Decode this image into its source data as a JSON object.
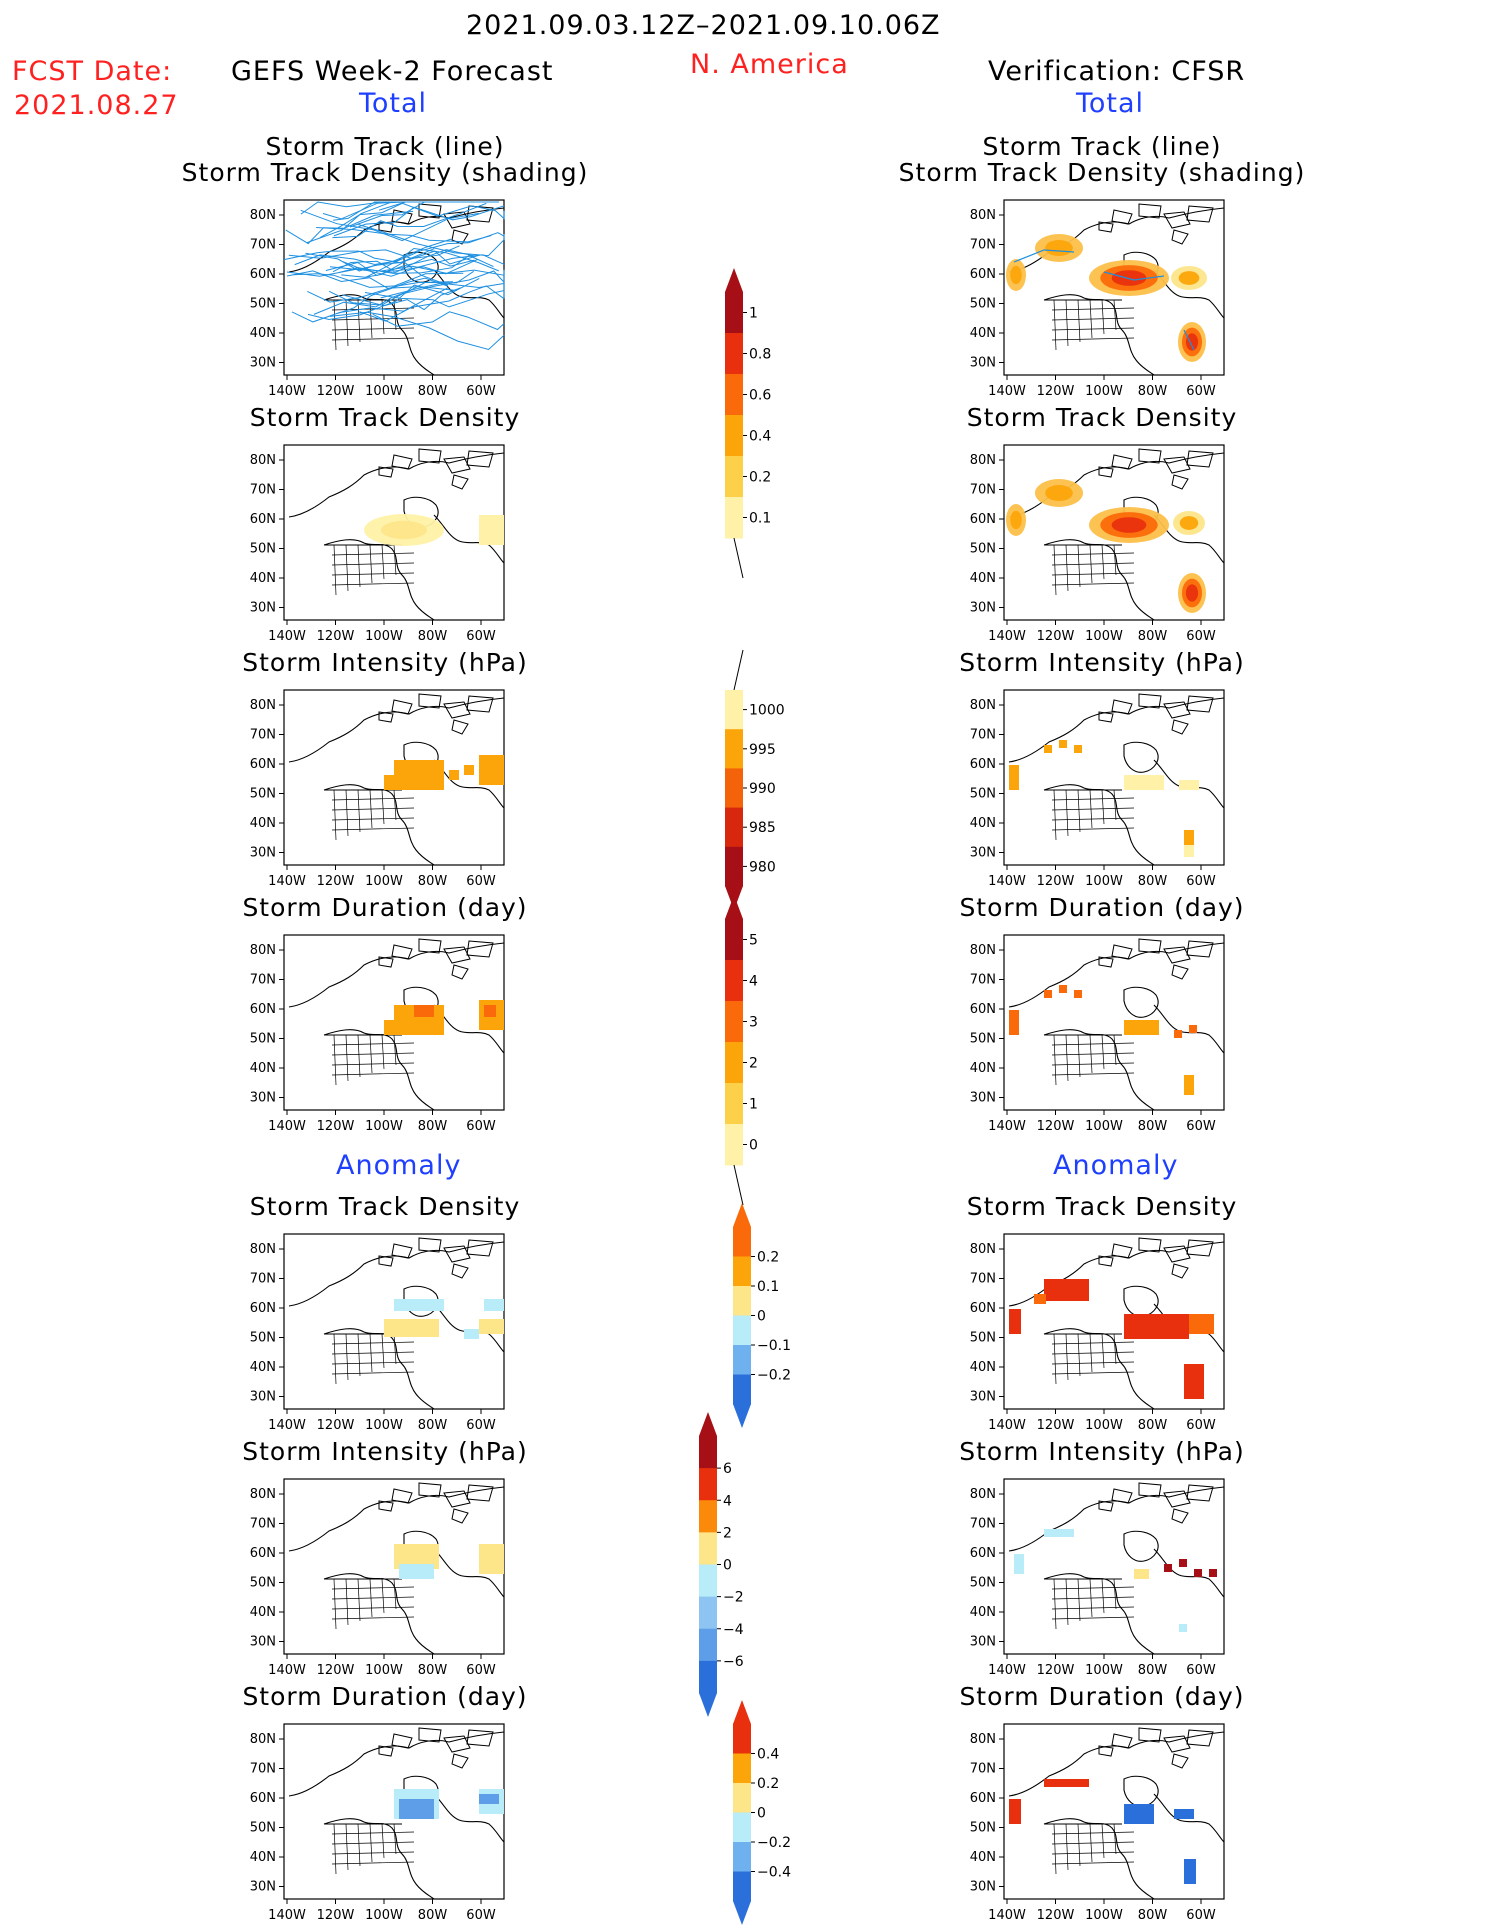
{
  "header": {
    "period": "2021.09.03.12Z–2021.09.10.06Z",
    "fcst_label": "FCST Date:",
    "fcst_date": "2021.08.27",
    "region": "N. America",
    "left_title": "GEFS Week-2 Forecast",
    "right_title": "Verification: CFSR",
    "total_label": "Total",
    "anomaly_label": "Anomaly"
  },
  "map_axes": {
    "lat_ticks": [
      "80N",
      "70N",
      "60N",
      "50N",
      "40N",
      "30N"
    ],
    "lon_ticks": [
      "140W",
      "120W",
      "100W",
      "80W",
      "60W"
    ]
  },
  "panel_titles": {
    "track": [
      "Storm Track (line)",
      "Storm Track Density (shading)"
    ],
    "density": "Storm Track Density",
    "intensity": "Storm Intensity (hPa)",
    "duration": "Storm Duration (day)"
  },
  "colorbars": [
    {
      "id": "track-density",
      "arrows": "top",
      "labels": [
        "1",
        "0.8",
        "0.6",
        "0.4",
        "0.2",
        "0.1"
      ],
      "colors": [
        "#a50f15",
        "#e8300e",
        "#fb6a0a",
        "#fca50a",
        "#fdd04a",
        "#fff2a8"
      ]
    },
    {
      "id": "intensity",
      "arrows": "bottom",
      "labels": [
        "1000",
        "995",
        "990",
        "985",
        "980"
      ],
      "colors": [
        "#fff2a8",
        "#fca50a",
        "#f4620a",
        "#d7280e",
        "#a50f15"
      ]
    },
    {
      "id": "duration",
      "arrows": "top",
      "labels": [
        "5",
        "4",
        "3",
        "2",
        "1",
        "0"
      ],
      "colors": [
        "#a50f15",
        "#e8300e",
        "#fb6a0a",
        "#fca50a",
        "#fdd04a",
        "#fff2a8"
      ]
    },
    {
      "id": "anom-density",
      "arrows": "both",
      "labels": [
        "0.2",
        "0.1",
        "0",
        "−0.1",
        "−0.2"
      ],
      "colors": [
        "#fb6a0a",
        "#fca50a",
        "#fde58a",
        "#b8ecf8",
        "#6fb0ee",
        "#2b6fdb"
      ]
    },
    {
      "id": "anom-intensity",
      "arrows": "both",
      "labels": [
        "6",
        "4",
        "2",
        "0",
        "−2",
        "−4",
        "−6"
      ],
      "colors": [
        "#a50f15",
        "#e8300e",
        "#fb8a0a",
        "#fde58a",
        "#b8ecf8",
        "#8ec4f2",
        "#5e9ee8",
        "#2b6fdb"
      ]
    },
    {
      "id": "anom-duration",
      "arrows": "both",
      "labels": [
        "0.4",
        "0.2",
        "0",
        "−0.2",
        "−0.4"
      ],
      "colors": [
        "#e8300e",
        "#fca50a",
        "#fde58a",
        "#b8ecf8",
        "#6fb0ee",
        "#2b6fdb"
      ]
    }
  ],
  "colors": {
    "header_red": "#ff2020",
    "header_blue": "#1f3fff",
    "track_line": "#1e90e0"
  }
}
